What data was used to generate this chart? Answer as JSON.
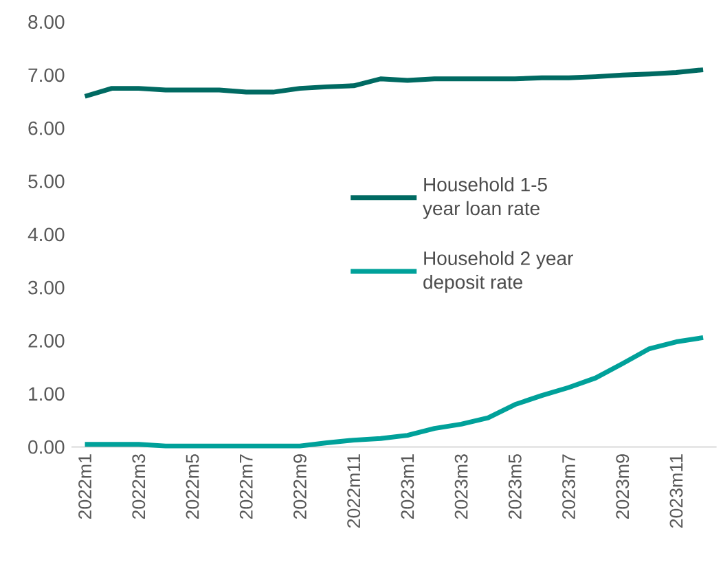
{
  "chart_data": {
    "type": "line",
    "categories": [
      "2022m1",
      null,
      "2022m3",
      null,
      "2022m5",
      null,
      "2022m7",
      null,
      "2022m9",
      null,
      "2022m11",
      null,
      "2023m1",
      null,
      "2023m3",
      null,
      "2023m5",
      null,
      "2023m7",
      null,
      "2023m9",
      null,
      "2023m11",
      null
    ],
    "series": [
      {
        "name": "Household 1-5 year loan rate",
        "color": "#006a62",
        "values": [
          6.6,
          6.75,
          6.75,
          6.72,
          6.72,
          6.72,
          6.68,
          6.68,
          6.75,
          6.78,
          6.8,
          6.93,
          6.9,
          6.93,
          6.93,
          6.93,
          6.93,
          6.95,
          6.95,
          6.97,
          7.0,
          7.02,
          7.05,
          7.1
        ]
      },
      {
        "name": "Household 2 year deposit rate",
        "color": "#00a19a",
        "values": [
          0.05,
          0.05,
          0.05,
          0.02,
          0.02,
          0.02,
          0.02,
          0.02,
          0.02,
          0.08,
          0.13,
          0.16,
          0.22,
          0.35,
          0.43,
          0.55,
          0.8,
          0.97,
          1.12,
          1.3,
          1.57,
          1.85,
          1.98,
          2.06
        ]
      }
    ],
    "ylim": [
      0,
      8
    ],
    "yticks": [
      {
        "value": 0,
        "label": "0.00"
      },
      {
        "value": 1,
        "label": "1.00"
      },
      {
        "value": 2,
        "label": "2.00"
      },
      {
        "value": 3,
        "label": "3.00"
      },
      {
        "value": 4,
        "label": "4.00"
      },
      {
        "value": 5,
        "label": "5.00"
      },
      {
        "value": 6,
        "label": "6.00"
      },
      {
        "value": 7,
        "label": "7.00"
      },
      {
        "value": 8,
        "label": "8.00"
      }
    ],
    "legend": "right",
    "grid": false,
    "marker": "none",
    "line_style": "solid"
  }
}
